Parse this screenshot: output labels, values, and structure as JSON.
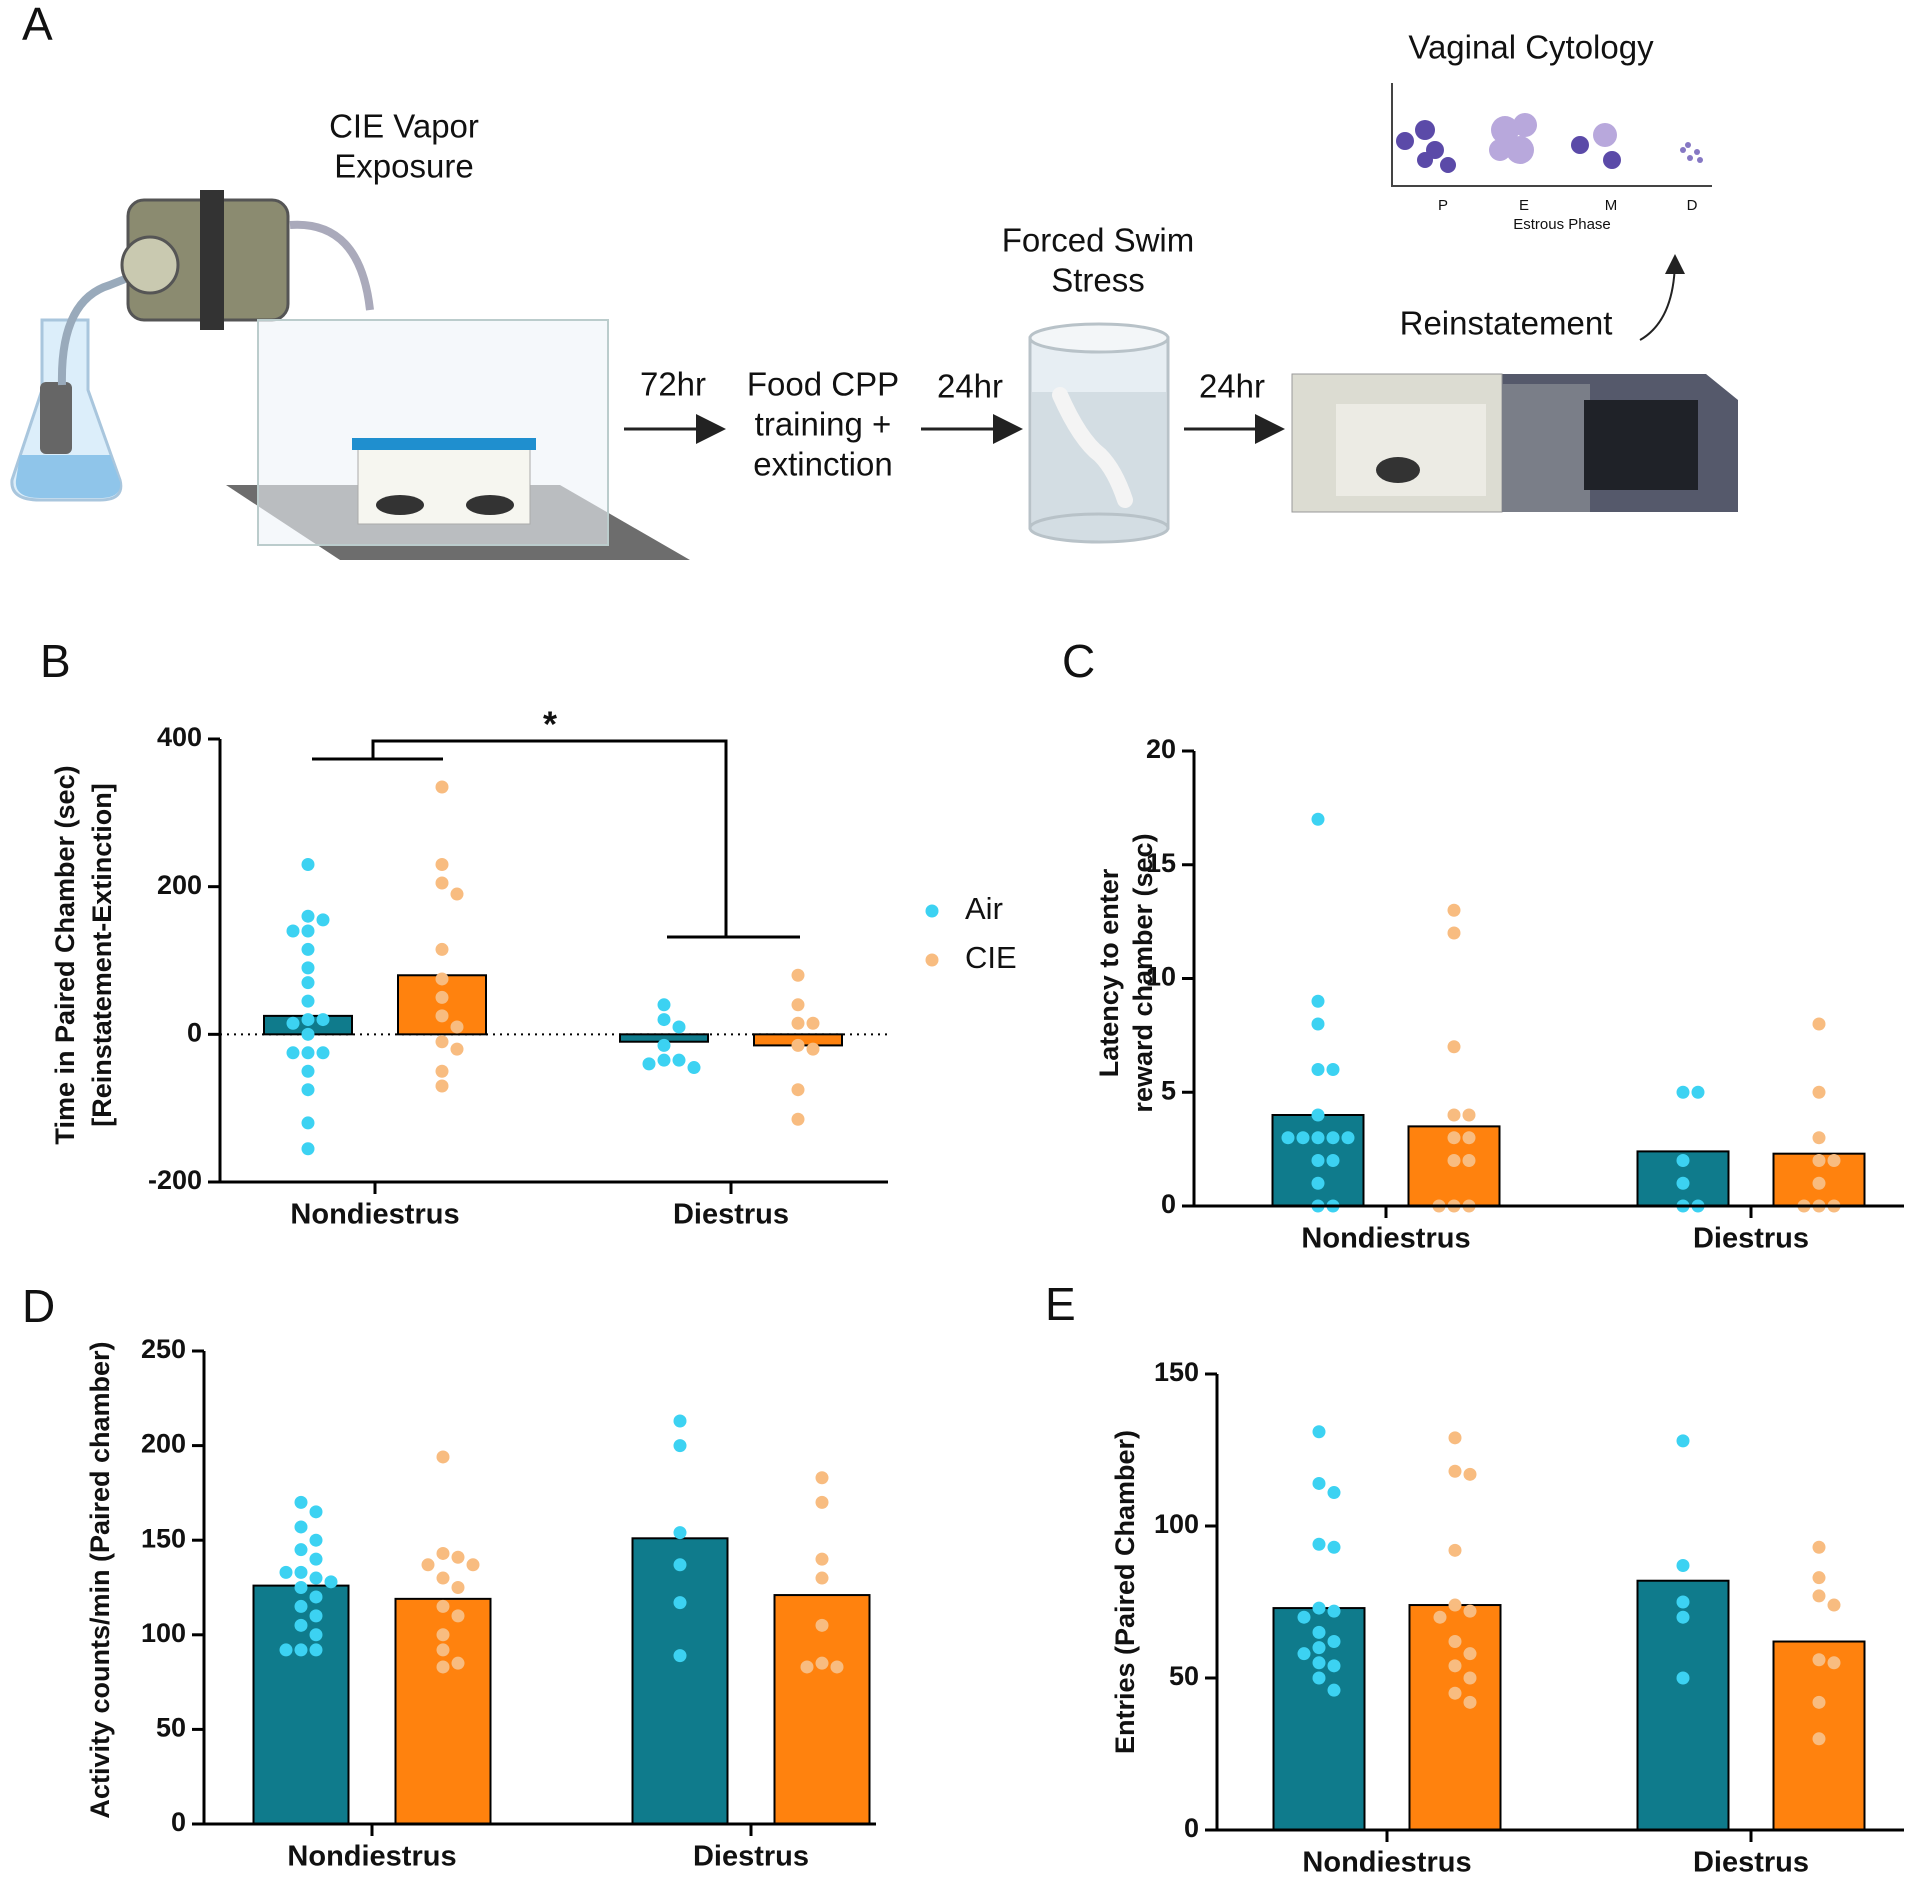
{
  "panel_a": {
    "letter": "A",
    "vapor": [
      "CIE Vapor",
      "Exposure"
    ],
    "step1_time": "72hr",
    "cpp": [
      "Food CPP",
      "training +",
      "extinction"
    ],
    "step2_time": "24hr",
    "swim": [
      "Forced Swim",
      "Stress"
    ],
    "step3_time": "24hr",
    "reinstatement": "Reinstatement",
    "cytology_title": "Vaginal Cytology",
    "phases": [
      "P",
      "E",
      "M",
      "D"
    ],
    "phase_axis": "Estrous Phase"
  },
  "chart_data": [
    {
      "type": "bar",
      "letter": "B",
      "ylabel": [
        "Time in Paired Chamber (sec)",
        "[Reinstatement-Extinction]"
      ],
      "categories": [
        "Nondiestrus",
        "Diestrus"
      ],
      "ylim": [
        -200,
        400
      ],
      "yticks": [
        -200,
        0,
        200,
        400
      ],
      "zero_line": true,
      "legend": true,
      "annotation": "*",
      "series": [
        {
          "name": "Air",
          "color": "#0f7b8c",
          "point_color": "#3cd2f2",
          "values": [
            25,
            -10
          ],
          "points": [
            [
              230,
              160,
              155,
              140,
              140,
              115,
              90,
              70,
              45,
              20,
              20,
              15,
              0,
              -25,
              -25,
              -25,
              -50,
              -75,
              -120,
              -155
            ],
            [
              40,
              20,
              10,
              -15,
              -35,
              -35,
              -40,
              -45
            ]
          ]
        },
        {
          "name": "CIE",
          "color": "#ff820e",
          "point_color": "#f8bc80",
          "values": [
            80,
            -15
          ],
          "points": [
            [
              335,
              230,
              205,
              190,
              115,
              75,
              50,
              25,
              10,
              -10,
              -20,
              -50,
              -70
            ],
            [
              80,
              40,
              15,
              15,
              -15,
              -20,
              -75,
              -115
            ]
          ]
        }
      ]
    },
    {
      "type": "bar",
      "letter": "C",
      "ylabel": [
        "Latency to enter",
        "reward chamber (sec)"
      ],
      "categories": [
        "Nondiestrus",
        "Diestrus"
      ],
      "ylim": [
        0,
        20
      ],
      "yticks": [
        0,
        5,
        10,
        15,
        20
      ],
      "series": [
        {
          "color": "#0f7b8c",
          "point_color": "#3cd2f2",
          "values": [
            4.0,
            2.4
          ],
          "points": [
            [
              17,
              9,
              8,
              6,
              6,
              4,
              3,
              3,
              3,
              3,
              3,
              2,
              2,
              1,
              0,
              0
            ],
            [
              5,
              5,
              2,
              1,
              0,
              0
            ]
          ]
        },
        {
          "color": "#ff820e",
          "point_color": "#f8bc80",
          "values": [
            3.5,
            2.3
          ],
          "points": [
            [
              13,
              12,
              7,
              4,
              4,
              3,
              3,
              2,
              2,
              0,
              0,
              0
            ],
            [
              8,
              5,
              3,
              2,
              2,
              1,
              0,
              0,
              0
            ]
          ]
        }
      ]
    },
    {
      "type": "bar",
      "letter": "D",
      "ylabel": [
        "Activity counts/min (Paired chamber)"
      ],
      "categories": [
        "Nondiestrus",
        "Diestrus"
      ],
      "ylim": [
        0,
        250
      ],
      "yticks": [
        0,
        50,
        100,
        150,
        200,
        250
      ],
      "series": [
        {
          "color": "#0f7b8c",
          "point_color": "#3cd2f2",
          "values": [
            126,
            151
          ],
          "points": [
            [
              170,
              165,
              157,
              150,
              145,
              140,
              133,
              133,
              130,
              128,
              125,
              120,
              115,
              110,
              105,
              100,
              92,
              92,
              92
            ],
            [
              213,
              200,
              154,
              137,
              117,
              89
            ]
          ]
        },
        {
          "color": "#ff820e",
          "point_color": "#f8bc80",
          "values": [
            119,
            121
          ],
          "points": [
            [
              194,
              143,
              141,
              137,
              137,
              130,
              125,
              115,
              110,
              100,
              92,
              85,
              83
            ],
            [
              183,
              170,
              140,
              130,
              105,
              85,
              83,
              83
            ]
          ]
        }
      ]
    },
    {
      "type": "bar",
      "letter": "E",
      "ylabel": [
        "Entries (Paired Chamber)"
      ],
      "categories": [
        "Nondiestrus",
        "Diestrus"
      ],
      "ylim": [
        0,
        150
      ],
      "yticks": [
        0,
        50,
        100,
        150
      ],
      "series": [
        {
          "color": "#0f7b8c",
          "point_color": "#3cd2f2",
          "values": [
            73,
            82
          ],
          "points": [
            [
              131,
              114,
              111,
              94,
              93,
              73,
              72,
              70,
              65,
              62,
              60,
              58,
              55,
              54,
              50,
              46
            ],
            [
              128,
              87,
              75,
              70,
              50
            ]
          ]
        },
        {
          "color": "#ff820e",
          "point_color": "#f8bc80",
          "values": [
            74,
            62
          ],
          "points": [
            [
              129,
              118,
              117,
              92,
              74,
              72,
              70,
              62,
              58,
              54,
              50,
              45,
              42
            ],
            [
              93,
              83,
              77,
              74,
              56,
              55,
              42,
              30
            ]
          ]
        }
      ]
    }
  ]
}
